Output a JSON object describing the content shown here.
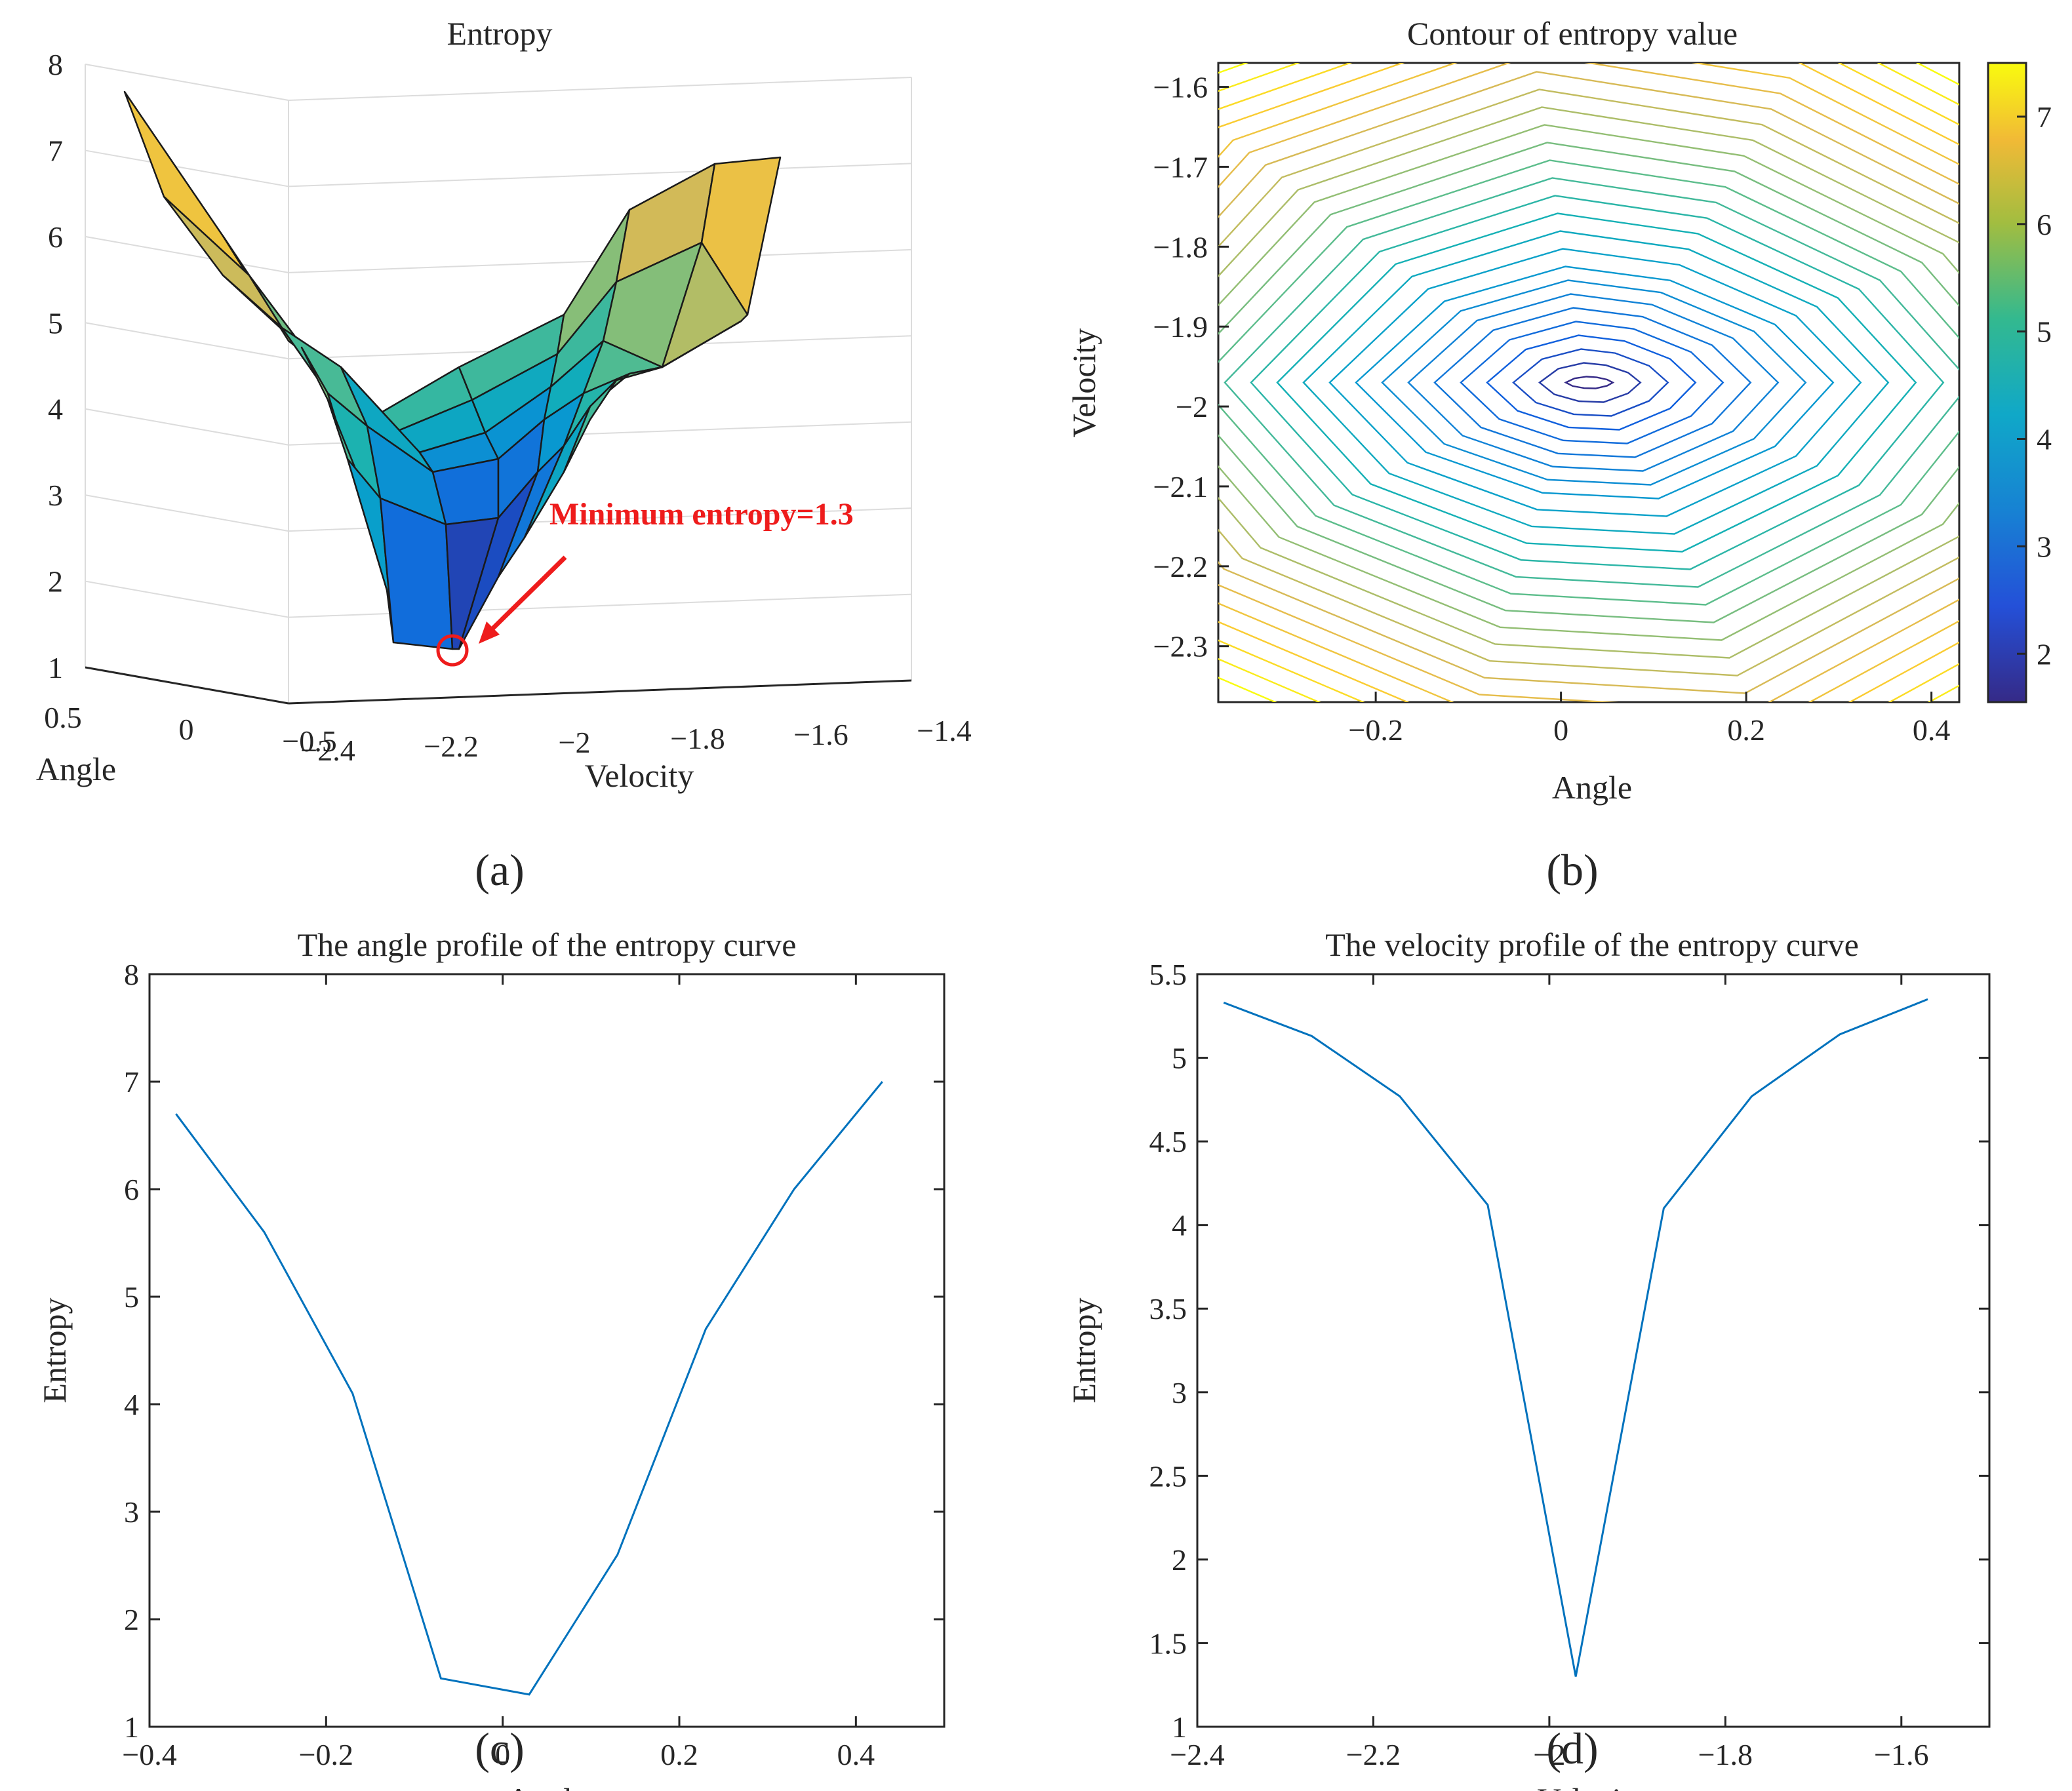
{
  "panel_a": {
    "caption": "(a)",
    "callout": "Minimum entropy=1.3",
    "accent": "#ee1c1c"
  },
  "panel_b": {
    "caption": "(b)"
  },
  "panel_c": {
    "caption": "(c)"
  },
  "panel_d": {
    "caption": "(d)"
  },
  "chart_data": [
    {
      "type": "surface",
      "title": "Entropy",
      "xlabel": "Angle",
      "ylabel": "Velocity",
      "zlabel": "",
      "x_ticks": [
        "0.5",
        "0",
        "−0.5"
      ],
      "y_ticks": [
        "−2.4",
        "−2.2",
        "−2",
        "−1.8",
        "−1.6",
        "−1.4"
      ],
      "z_ticks": [
        "1",
        "2",
        "3",
        "4",
        "5",
        "6",
        "7",
        "8"
      ],
      "zlim": [
        1,
        8
      ],
      "colormap": "parula",
      "annotation": "Minimum entropy=1.3",
      "minimum": 1.3
    },
    {
      "type": "contour",
      "title": "Contour of entropy value",
      "xlabel": "Angle",
      "ylabel": "Velocity",
      "x_ticks": [
        "−0.2",
        "0",
        "0.2",
        "0.4"
      ],
      "y_ticks": [
        "−1.6",
        "−1.7",
        "−1.8",
        "−1.9",
        "−2",
        "−2.1",
        "−2.2",
        "−2.3"
      ],
      "xlim": [
        -0.37,
        0.43
      ],
      "ylim": [
        -2.37,
        -1.57
      ],
      "colorbar_ticks": [
        "7",
        "6",
        "5",
        "4",
        "3",
        "2"
      ],
      "colorbar_range": [
        1.55,
        7.5
      ],
      "colormap": "parula",
      "center": {
        "x": 0.03,
        "y": -1.97,
        "value": 1.3
      }
    },
    {
      "type": "line",
      "title": "The angle profile of the entropy curve",
      "xlabel": "Angle",
      "ylabel": "Entropy",
      "x_ticks": [
        "−0.4",
        "−0.2",
        "0",
        "0.2",
        "0.4"
      ],
      "y_ticks": [
        "1",
        "2",
        "3",
        "4",
        "5",
        "6",
        "7",
        "8"
      ],
      "xlim": [
        -0.4,
        0.5
      ],
      "ylim": [
        1,
        8
      ],
      "color": "#0072bd",
      "x": [
        -0.37,
        -0.27,
        -0.17,
        -0.07,
        0.03,
        0.13,
        0.23,
        0.33,
        0.43
      ],
      "y": [
        6.7,
        5.6,
        4.1,
        1.45,
        1.3,
        2.6,
        4.7,
        6.0,
        7.0
      ]
    },
    {
      "type": "line",
      "title": "The velocity profile of the entropy curve",
      "xlabel": "Velocity",
      "ylabel": "Entropy",
      "x_ticks": [
        "−2.4",
        "−2.2",
        "−2",
        "−1.8",
        "−1.6"
      ],
      "y_ticks": [
        "1",
        "1.5",
        "2",
        "2.5",
        "3",
        "3.5",
        "4",
        "4.5",
        "5",
        "5.5"
      ],
      "xlim": [
        -2.4,
        -1.5
      ],
      "ylim": [
        1,
        5.5
      ],
      "color": "#0072bd",
      "x": [
        -2.37,
        -2.27,
        -2.17,
        -2.07,
        -1.97,
        -1.87,
        -1.77,
        -1.67,
        -1.57
      ],
      "y": [
        5.33,
        5.13,
        4.77,
        4.12,
        1.3,
        4.1,
        4.77,
        5.14,
        5.35
      ]
    }
  ]
}
